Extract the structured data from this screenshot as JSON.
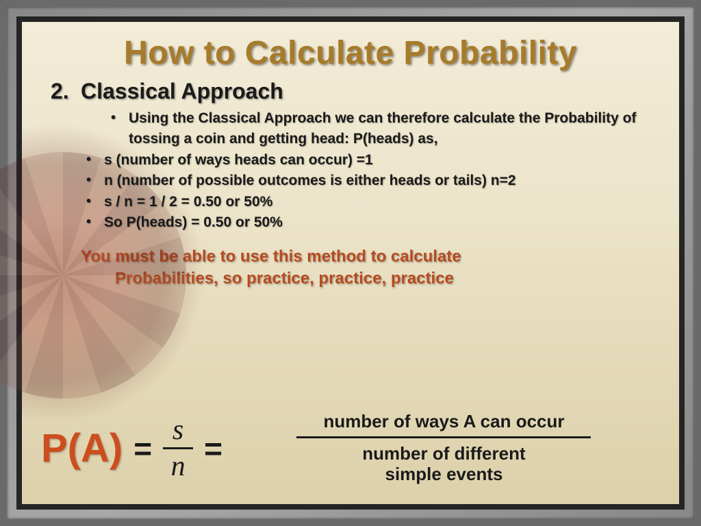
{
  "slide": {
    "title": "How to Calculate Probability",
    "section_number": "2.",
    "subtitle": "Classical Approach",
    "bullets": [
      {
        "level": 1,
        "text": "Using the Classical Approach we can therefore calculate the Probability of tossing a coin and getting head: P(heads) as,"
      },
      {
        "level": 0,
        "text": "s (number of ways heads can occur) =1"
      },
      {
        "level": 0,
        "text": "n (number of possible outcomes is either heads or tails) n=2"
      },
      {
        "level": 0,
        "text": "s / n = 1 / 2 = 0.50 or 50%"
      },
      {
        "level": 0,
        "text": "So P(heads) = 0.50 or 50%"
      }
    ],
    "emphasis_line1": "You must be able to use this method to calculate",
    "emphasis_line2": "Probabilities, so practice, practice, practice",
    "formula": {
      "lhs": "P(A)",
      "eq": "=",
      "frac_top": "s",
      "frac_bot": "n",
      "desc_top": "number of ways A can occur",
      "desc_bot1": "number of different",
      "desc_bot2": "simple events"
    },
    "colors": {
      "title_color": "#a77b2a",
      "body_text": "#1a1a1a",
      "emphasis_color": "#b84a1f",
      "pa_color": "#cc4e1e",
      "bg_top": "#f2ecd8",
      "bg_bot": "#ddd1ab",
      "frame_gray": "#888888",
      "frame_inner": "#252525"
    },
    "fonts": {
      "title_size_pt": 36,
      "subtitle_size_pt": 24,
      "bullet_size_pt": 16,
      "emphasis_size_pt": 18,
      "formula_lhs_size_pt": 44,
      "formula_frac_size_pt": 32,
      "formula_desc_size_pt": 20
    }
  }
}
